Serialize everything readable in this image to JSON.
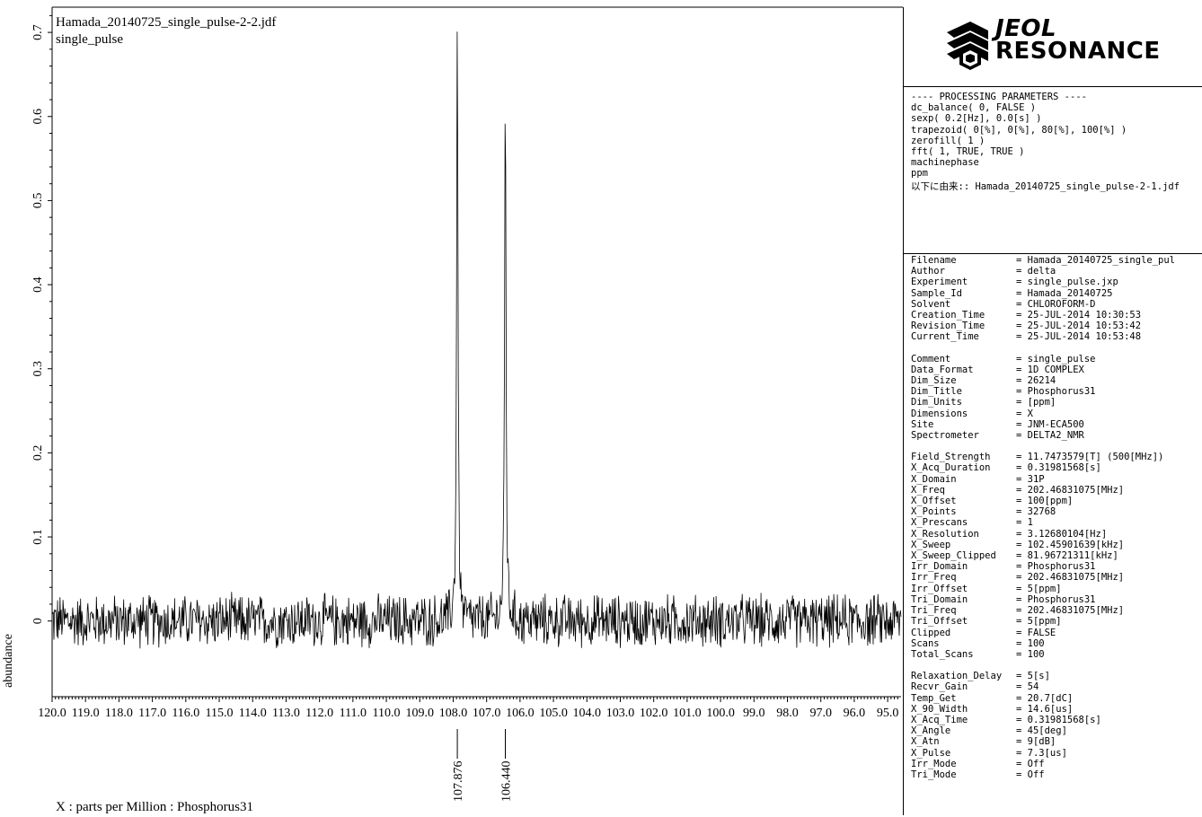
{
  "header": {
    "filename": "Hamada_20140725_single_pulse-2-2.jdf",
    "subtitle": "single_pulse"
  },
  "axes": {
    "xtitle": "X : parts per Million : Phosphorus31",
    "ylabel": "abundance"
  },
  "chart_data": {
    "type": "line",
    "title": "Hamada_20140725_single_pulse-2-2.jdf",
    "subtitle": "single_pulse",
    "xlabel": "X : parts per Million : Phosphorus31",
    "ylabel": "abundance",
    "xlim": [
      120.0,
      94.6
    ],
    "ylim": [
      -0.09,
      0.73
    ],
    "x_reversed": true,
    "xticks": [
      120.0,
      119.0,
      118.0,
      117.0,
      116.0,
      115.0,
      114.0,
      113.0,
      112.0,
      111.0,
      110.0,
      109.0,
      108.0,
      107.0,
      106.0,
      105.0,
      104.0,
      103.0,
      102.0,
      101.0,
      100.0,
      99.0,
      98.0,
      97.0,
      96.0,
      95.0
    ],
    "xtick_labels": [
      "120.0",
      "119.0",
      "118.0",
      "117.0",
      "116.0",
      "115.0",
      "114.0",
      "113.0",
      "112.0",
      "111.0",
      "110.0",
      "109.0",
      "108.0",
      "107.0",
      "106.0",
      "105.0",
      "104.0",
      "103.0",
      "102.0",
      "101.0",
      "100.0",
      "99.0",
      "98.0",
      "97.0",
      "96.0",
      "95.0"
    ],
    "yticks": [
      0,
      0.1,
      0.2,
      0.3,
      0.4,
      0.5,
      0.6,
      0.7
    ],
    "ytick_labels": [
      "0",
      "0.1",
      "0.2",
      "0.3",
      "0.4",
      "0.5",
      "0.6",
      "0.7"
    ],
    "peaks": [
      {
        "ppm": 107.876,
        "height": 0.715,
        "label": "107.876"
      },
      {
        "ppm": 106.44,
        "height": 0.635,
        "label": "106.440"
      }
    ],
    "noise_amplitude": 0.03,
    "grid": false
  },
  "logo": {
    "line1": "JEOL",
    "line2": "RESONANCE"
  },
  "processing": {
    "lines": [
      "---- PROCESSING PARAMETERS ----",
      "dc_balance( 0, FALSE )",
      "sexp( 0.2[Hz], 0.0[s] )",
      "trapezoid( 0[%], 0[%], 80[%], 100[%] )",
      "zerofill( 1 )",
      "fft( 1, TRUE, TRUE )",
      "machinephase",
      "ppm"
    ],
    "derived_from": "以下に由来:: Hamada_20140725_single_pulse-2-1.jdf"
  },
  "params": {
    "group1": [
      [
        "Filename",
        "= Hamada_20140725_single_pul"
      ],
      [
        "Author",
        "= delta"
      ],
      [
        "Experiment",
        "= single_pulse.jxp"
      ],
      [
        "Sample_Id",
        "= Hamada_20140725"
      ],
      [
        "Solvent",
        "= CHLOROFORM-D"
      ],
      [
        "Creation_Time",
        "= 25-JUL-2014 10:30:53"
      ],
      [
        "Revision_Time",
        "= 25-JUL-2014 10:53:42"
      ],
      [
        "Current_Time",
        "= 25-JUL-2014 10:53:48"
      ]
    ],
    "group2": [
      [
        "Comment",
        "= single_pulse"
      ],
      [
        "Data_Format",
        "= 1D COMPLEX"
      ],
      [
        "Dim_Size",
        "= 26214"
      ],
      [
        "Dim_Title",
        "= Phosphorus31"
      ],
      [
        "Dim_Units",
        "= [ppm]"
      ],
      [
        "Dimensions",
        "= X"
      ],
      [
        "Site",
        "= JNM-ECA500"
      ],
      [
        "Spectrometer",
        "= DELTA2_NMR"
      ]
    ],
    "group3": [
      [
        "Field_Strength",
        "= 11.7473579[T] (500[MHz])"
      ],
      [
        "X_Acq_Duration",
        "= 0.31981568[s]"
      ],
      [
        "X_Domain",
        "= 31P"
      ],
      [
        "X_Freq",
        "= 202.46831075[MHz]"
      ],
      [
        "X_Offset",
        "= 100[ppm]"
      ],
      [
        "X_Points",
        "= 32768"
      ],
      [
        "X_Prescans",
        "= 1"
      ],
      [
        "X_Resolution",
        "= 3.12680104[Hz]"
      ],
      [
        "X_Sweep",
        "= 102.45901639[kHz]"
      ],
      [
        "X_Sweep_Clipped",
        "= 81.96721311[kHz]"
      ],
      [
        "Irr_Domain",
        "= Phosphorus31"
      ],
      [
        "Irr_Freq",
        "= 202.46831075[MHz]"
      ],
      [
        "Irr_Offset",
        "= 5[ppm]"
      ],
      [
        "Tri_Domain",
        "= Phosphorus31"
      ],
      [
        "Tri_Freq",
        "= 202.46831075[MHz]"
      ],
      [
        "Tri_Offset",
        "= 5[ppm]"
      ],
      [
        "Clipped",
        "= FALSE"
      ],
      [
        "Scans",
        "= 100"
      ],
      [
        "Total_Scans",
        "= 100"
      ]
    ],
    "group4": [
      [
        "Relaxation_Delay",
        "= 5[s]"
      ],
      [
        "Recvr_Gain",
        "= 54"
      ],
      [
        "Temp_Get",
        "= 20.7[dC]"
      ],
      [
        "X_90_Width",
        "= 14.6[us]"
      ],
      [
        "X_Acq_Time",
        "= 0.31981568[s]"
      ],
      [
        "X_Angle",
        "= 45[deg]"
      ],
      [
        "X_Atn",
        "= 9[dB]"
      ],
      [
        "X_Pulse",
        "= 7.3[us]"
      ],
      [
        "Irr_Mode",
        "= Off"
      ],
      [
        "Tri_Mode",
        "= Off"
      ]
    ]
  }
}
